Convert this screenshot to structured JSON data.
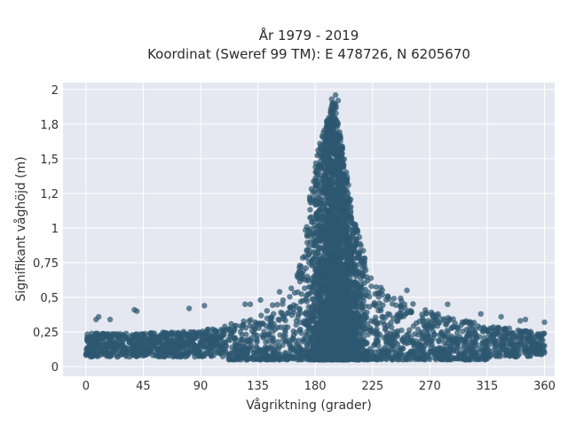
{
  "chart_data": {
    "type": "scatter",
    "title_line1": "År 1979 - 2019",
    "title_line2": "Koordinat (Sweref 99 TM): E 478726, N 6205670",
    "xlabel": "Vågriktning (grader)",
    "ylabel": "Signifikant våghöjd (m)",
    "xlim": [
      -18,
      368
    ],
    "ylim": [
      -0.07,
      2.05
    ],
    "x_ticks": [
      0,
      45,
      90,
      135,
      180,
      225,
      270,
      315,
      360
    ],
    "x_tick_labels": [
      "0",
      "45",
      "90",
      "135",
      "180",
      "225",
      "270",
      "315",
      "360"
    ],
    "y_ticks": [
      0,
      0.25,
      0.5,
      0.75,
      1,
      1.25,
      1.5,
      1.75,
      2
    ],
    "y_tick_labels": [
      "0",
      "0,25",
      "0,5",
      "0,75",
      "1",
      "1,2",
      "1,5",
      "1,8",
      "2"
    ],
    "grid": true,
    "legend": "none",
    "marker_color": "#2e5870",
    "background_color": "#e5e8f0",
    "distribution": {
      "description_points": [
        {
          "x": 0,
          "y_max": 0.24
        },
        {
          "x": 45,
          "y_max": 0.24
        },
        {
          "x": 90,
          "y_max": 0.26
        },
        {
          "x": 135,
          "y_max": 0.35
        },
        {
          "x": 165,
          "y_max": 0.6
        },
        {
          "x": 180,
          "y_max": 1.5
        },
        {
          "x": 195,
          "y_max": 1.95
        },
        {
          "x": 210,
          "y_max": 1.1
        },
        {
          "x": 225,
          "y_max": 0.6
        },
        {
          "x": 270,
          "y_max": 0.4
        },
        {
          "x": 315,
          "y_max": 0.3
        },
        {
          "x": 360,
          "y_max": 0.24
        }
      ],
      "outliers": [
        {
          "x": 8,
          "y": 0.34
        },
        {
          "x": 10,
          "y": 0.36
        },
        {
          "x": 19,
          "y": 0.34
        },
        {
          "x": 38,
          "y": 0.41
        },
        {
          "x": 40,
          "y": 0.4
        },
        {
          "x": 81,
          "y": 0.42
        },
        {
          "x": 93,
          "y": 0.44
        },
        {
          "x": 125,
          "y": 0.45
        },
        {
          "x": 129,
          "y": 0.45
        },
        {
          "x": 137,
          "y": 0.48
        },
        {
          "x": 152,
          "y": 0.54
        },
        {
          "x": 252,
          "y": 0.55
        },
        {
          "x": 284,
          "y": 0.45
        },
        {
          "x": 310,
          "y": 0.38
        },
        {
          "x": 326,
          "y": 0.36
        },
        {
          "x": 341,
          "y": 0.33
        },
        {
          "x": 345,
          "y": 0.34
        },
        {
          "x": 360,
          "y": 0.32
        },
        {
          "x": 196,
          "y": 1.96
        },
        {
          "x": 193,
          "y": 1.93
        },
        {
          "x": 198,
          "y": 1.92
        }
      ]
    }
  }
}
